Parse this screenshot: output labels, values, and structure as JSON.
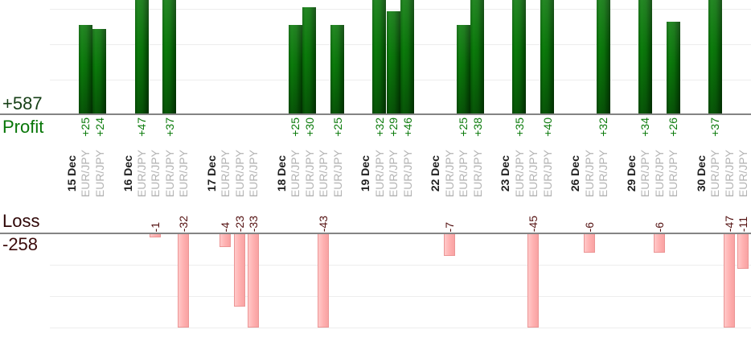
{
  "chart_data": {
    "type": "bar",
    "title": "",
    "description": "Per-trade profit and loss bars grouped by date",
    "instrument": "EUR/JPY",
    "profit_axis": {
      "total_label": "+587",
      "name": "Profit"
    },
    "loss_axis": {
      "name": "Loss",
      "total_label": "-258"
    },
    "axes": {
      "grid": true,
      "grid_interval": 10,
      "profit_visible_max": 32.5,
      "loss_visible_max": 30,
      "legend_position": "none"
    },
    "colors": {
      "profit_bar": "#0a700a",
      "loss_bar": "#ffb1b1",
      "loss_bar_border": "#ec9595",
      "profit_value_text": "#0b7b0b",
      "loss_value_text": "#541111",
      "date_text": "#1f1f1f",
      "instrument_text": "#b3b3b3",
      "axis_line": "#848484",
      "gridline": "#ededed",
      "profit_total_text": "#163f16",
      "profit_name_text": "#077607",
      "loss_name_text": "#2e0606",
      "loss_total_text": "#3c0b0b"
    },
    "groups": [
      {
        "date": "15 Dec",
        "trades": [
          {
            "instrument": "EUR/JPY",
            "value": 25,
            "label": "+25"
          },
          {
            "instrument": "EUR/JPY",
            "value": 24,
            "label": "+24"
          }
        ]
      },
      {
        "date": "16 Dec",
        "trades": [
          {
            "instrument": "EUR/JPY",
            "value": 47,
            "label": "+47"
          },
          {
            "instrument": "EUR/JPY",
            "value": -1,
            "label": "-1"
          },
          {
            "instrument": "EUR/JPY",
            "value": 37,
            "label": "+37"
          },
          {
            "instrument": "EUR/JPY",
            "value": -32,
            "label": "-32"
          }
        ]
      },
      {
        "date": "17 Dec",
        "trades": [
          {
            "instrument": "EUR/JPY",
            "value": -4,
            "label": "-4"
          },
          {
            "instrument": "EUR/JPY",
            "value": -23,
            "label": "-23"
          },
          {
            "instrument": "EUR/JPY",
            "value": -33,
            "label": "-33"
          }
        ]
      },
      {
        "date": "18 Dec",
        "trades": [
          {
            "instrument": "EUR/JPY",
            "value": 25,
            "label": "+25"
          },
          {
            "instrument": "EUR/JPY",
            "value": 30,
            "label": "+30"
          },
          {
            "instrument": "EUR/JPY",
            "value": -43,
            "label": "-43"
          },
          {
            "instrument": "EUR/JPY",
            "value": 25,
            "label": "+25"
          }
        ]
      },
      {
        "date": "19 Dec",
        "trades": [
          {
            "instrument": "EUR/JPY",
            "value": 32,
            "label": "+32"
          },
          {
            "instrument": "EUR/JPY",
            "value": 29,
            "label": "+29"
          },
          {
            "instrument": "EUR/JPY",
            "value": 46,
            "label": "+46"
          }
        ]
      },
      {
        "date": "22 Dec",
        "trades": [
          {
            "instrument": "EUR/JPY",
            "value": -7,
            "label": "-7"
          },
          {
            "instrument": "EUR/JPY",
            "value": 25,
            "label": "+25"
          },
          {
            "instrument": "EUR/JPY",
            "value": 38,
            "label": "+38"
          }
        ]
      },
      {
        "date": "23 Dec",
        "trades": [
          {
            "instrument": "EUR/JPY",
            "value": 35,
            "label": "+35"
          },
          {
            "instrument": "EUR/JPY",
            "value": -45,
            "label": "-45"
          },
          {
            "instrument": "EUR/JPY",
            "value": 40,
            "label": "+40"
          }
        ]
      },
      {
        "date": "26 Dec",
        "trades": [
          {
            "instrument": "EUR/JPY",
            "value": -6,
            "label": "-6"
          },
          {
            "instrument": "EUR/JPY",
            "value": 32,
            "label": "+32"
          }
        ]
      },
      {
        "date": "29 Dec",
        "trades": [
          {
            "instrument": "EUR/JPY",
            "value": 34,
            "label": "+34"
          },
          {
            "instrument": "EUR/JPY",
            "value": -6,
            "label": "-6"
          },
          {
            "instrument": "EUR/JPY",
            "value": 26,
            "label": "+26"
          }
        ]
      },
      {
        "date": "30 Dec",
        "trades": [
          {
            "instrument": "EUR/JPY",
            "value": 37,
            "label": "+37"
          },
          {
            "instrument": "EUR/JPY",
            "value": -47,
            "label": "-47"
          },
          {
            "instrument": "EUR/JPY",
            "value": -11,
            "label": "-11"
          }
        ]
      }
    ]
  }
}
